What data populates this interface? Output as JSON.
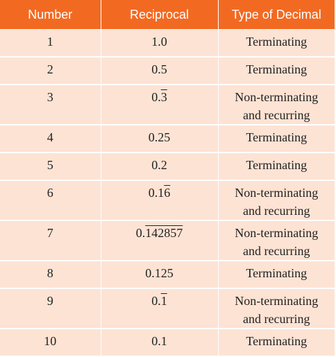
{
  "table": {
    "headers": [
      "Number",
      "Reciprocal",
      "Type of Decimal"
    ],
    "rows": [
      {
        "number": "1",
        "recip_int": "1.0",
        "recip_rep": "",
        "type": "Terminating",
        "type2": ""
      },
      {
        "number": "2",
        "recip_int": "0.5",
        "recip_rep": "",
        "type": "Terminating",
        "type2": ""
      },
      {
        "number": "3",
        "recip_int": "0.",
        "recip_rep": "3",
        "type": "Non-terminating",
        "type2": "and recurring"
      },
      {
        "number": "4",
        "recip_int": "0.25",
        "recip_rep": "",
        "type": "Terminating",
        "type2": ""
      },
      {
        "number": "5",
        "recip_int": "0.2",
        "recip_rep": "",
        "type": "Terminating",
        "type2": ""
      },
      {
        "number": "6",
        "recip_int": "0.1",
        "recip_rep": "6",
        "type": "Non-terminating",
        "type2": "and recurring"
      },
      {
        "number": "7",
        "recip_int": "0.",
        "recip_rep": "142857",
        "type": "Non-terminating",
        "type2": "and recurring"
      },
      {
        "number": "8",
        "recip_int": "0.125",
        "recip_rep": "",
        "type": "Terminating",
        "type2": ""
      },
      {
        "number": "9",
        "recip_int": "0.",
        "recip_rep": "1",
        "type": "Non-terminating",
        "type2": "and recurring"
      },
      {
        "number": "10",
        "recip_int": "0.1",
        "recip_rep": "",
        "type": "Terminating",
        "type2": ""
      }
    ],
    "colors": {
      "header_bg": "#f26a22",
      "row_bg": "#fde3d4",
      "grid": "#ffffff"
    }
  }
}
